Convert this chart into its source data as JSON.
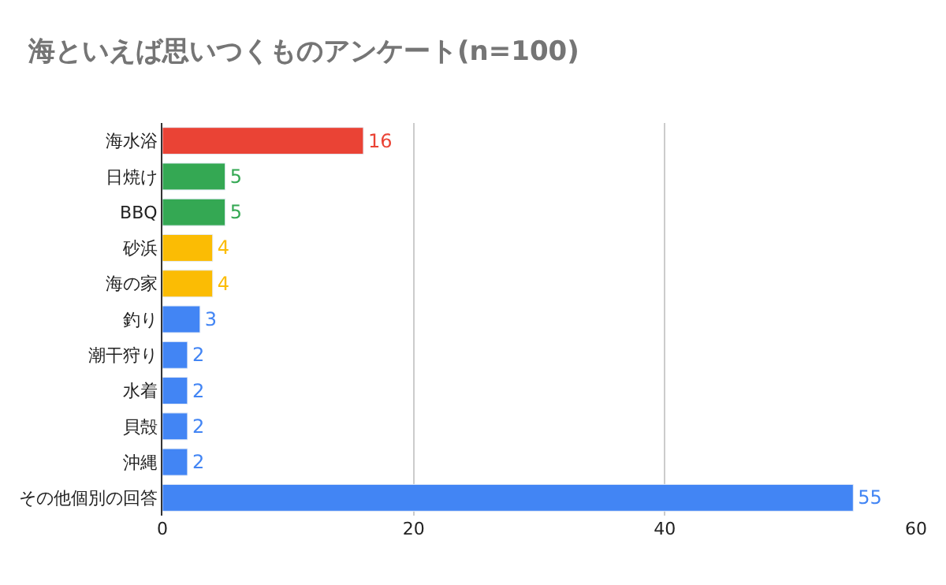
{
  "chart_data": {
    "type": "bar",
    "orientation": "horizontal",
    "title": "海といえば思いつくものアンケート(n=100)",
    "categories": [
      "海水浴",
      "日焼け",
      "BBQ",
      "砂浜",
      "海の家",
      "釣り",
      "潮干狩り",
      "水着",
      "貝殻",
      "沖縄",
      "その他個別の回答"
    ],
    "values": [
      16,
      5,
      5,
      4,
      4,
      3,
      2,
      2,
      2,
      2,
      55
    ],
    "colors": [
      "#ea4335",
      "#34a853",
      "#34a853",
      "#fbbc04",
      "#fbbc04",
      "#4285f4",
      "#4285f4",
      "#4285f4",
      "#4285f4",
      "#4285f4",
      "#4285f4"
    ],
    "xlim": [
      0,
      60
    ],
    "xticks": [
      0,
      20,
      40,
      60
    ],
    "grid": "x",
    "data_labels": true,
    "legend": false
  }
}
